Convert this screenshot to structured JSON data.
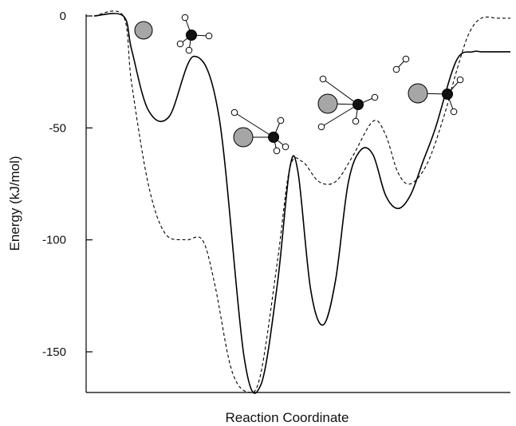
{
  "chart_data": {
    "type": "line",
    "xlabel": "Reaction Coordinate",
    "ylabel": "Energy (kJ/mol)",
    "ylim": [
      -170,
      0
    ],
    "y_ticks": [
      0,
      -50,
      -100,
      -150
    ],
    "y_tick_labels": [
      "0",
      "-50",
      "-100",
      "-150"
    ],
    "x_ticks_shown": false,
    "grid": false,
    "legend": "none",
    "series": [
      {
        "style": "solid",
        "color": "#000000",
        "x": [
          0,
          0.07,
          0.09,
          0.13,
          0.18,
          0.24,
          0.3,
          0.36,
          0.4,
          0.44,
          0.47,
          0.49,
          0.52,
          0.55,
          0.58,
          0.61,
          0.64,
          0.67,
          0.7,
          0.73,
          0.76,
          0.79,
          0.82,
          0.87,
          0.91,
          0.93,
          0.97,
          1.0
        ],
        "y": [
          0,
          0,
          -15,
          -42,
          -45,
          -18,
          -45,
          -152,
          -165,
          -120,
          -68,
          -70,
          -122,
          -138,
          -118,
          -75,
          -60,
          -62,
          -80,
          -86,
          -80,
          -65,
          -50,
          -20,
          -16,
          -16,
          -16,
          -16
        ]
      },
      {
        "style": "dashed",
        "color": "#000000",
        "x": [
          0,
          0.07,
          0.09,
          0.13,
          0.17,
          0.22,
          0.26,
          0.29,
          0.33,
          0.37,
          0.4,
          0.44,
          0.47,
          0.5,
          0.54,
          0.58,
          0.62,
          0.67,
          0.7,
          0.73,
          0.76,
          0.8,
          0.84,
          0.87,
          0.9,
          0.93,
          0.97,
          1.0
        ],
        "y": [
          0,
          0,
          -30,
          -75,
          -97,
          -100,
          -100,
          -120,
          -158,
          -168,
          -160,
          -110,
          -68,
          -65,
          -74,
          -74,
          -63,
          -47,
          -53,
          -70,
          -75,
          -66,
          -45,
          -25,
          -8,
          -1,
          -1,
          -1
        ]
      }
    ],
    "annotations": [
      {
        "kind": "molecule-diagram",
        "at_x": 0.18,
        "at_y": -8
      },
      {
        "kind": "molecule-diagram",
        "at_x": 0.4,
        "at_y": -53
      },
      {
        "kind": "molecule-diagram",
        "at_x": 0.67,
        "at_y": -40
      },
      {
        "kind": "molecule-diagram",
        "at_x": 0.85,
        "at_y": -35
      }
    ]
  }
}
